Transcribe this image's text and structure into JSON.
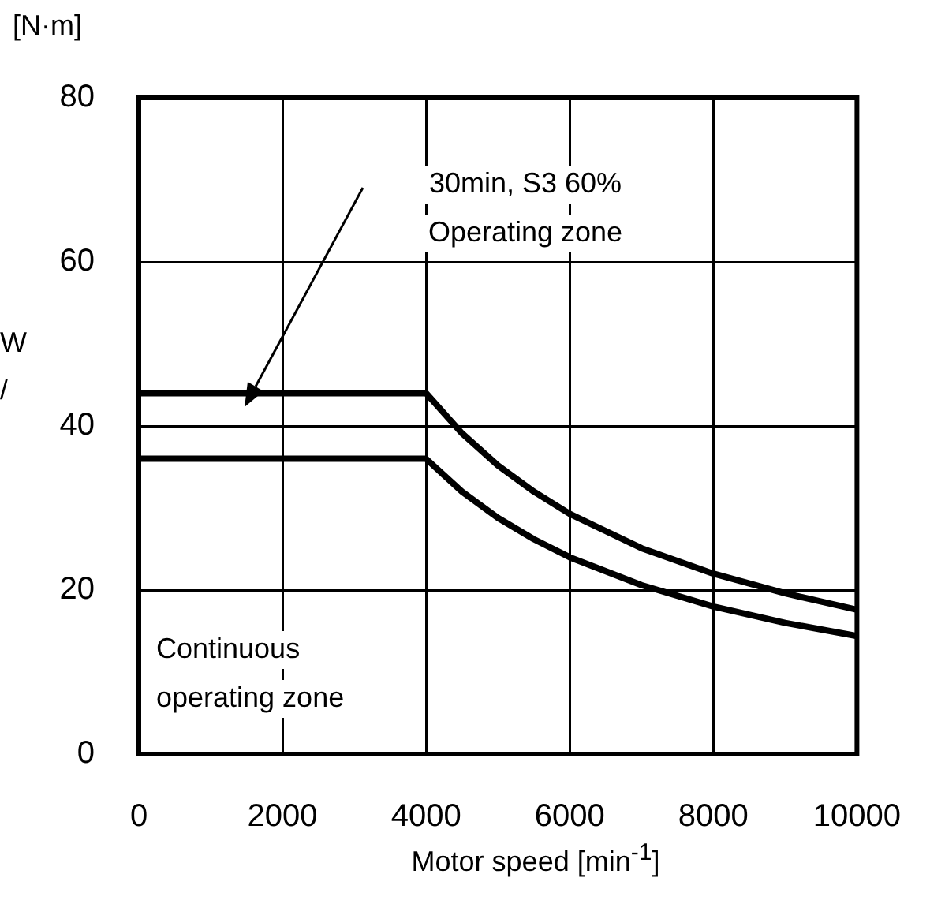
{
  "chart_data": {
    "type": "line",
    "xlabel": "Motor speed [min$^{-1}$]",
    "ylabel": "[N·m]",
    "series": [
      {
        "color": "#000000",
        "x": [
          0,
          4000,
          4500,
          5000,
          5500,
          6000,
          7000,
          8000,
          9000,
          10000
        ],
        "values": [
          44,
          44,
          39.1,
          35.2,
          32,
          29.3,
          25.1,
          22,
          19.6,
          17.6
        ]
      },
      {
        "color": "#000000",
        "x": [
          0,
          4000,
          4500,
          5000,
          5500,
          6000,
          7000,
          8000,
          9000,
          10000
        ],
        "values": [
          36,
          36,
          32,
          28.8,
          26.2,
          24,
          20.6,
          18,
          16,
          14.4
        ]
      }
    ],
    "xlim": [
      0,
      10000
    ],
    "xticks": [
      0,
      2000,
      4000,
      6000,
      8000,
      10000
    ],
    "ylim": [
      0,
      80
    ],
    "yticks": [
      0,
      20,
      40,
      60,
      80
    ],
    "grid": true,
    "legend": false,
    "marker": "none",
    "line_style": "solid",
    "annotations": [
      "30min, S3 60%",
      "Operating zone",
      "Continuous\noperating zone",
      "W",
      "/"
    ]
  }
}
